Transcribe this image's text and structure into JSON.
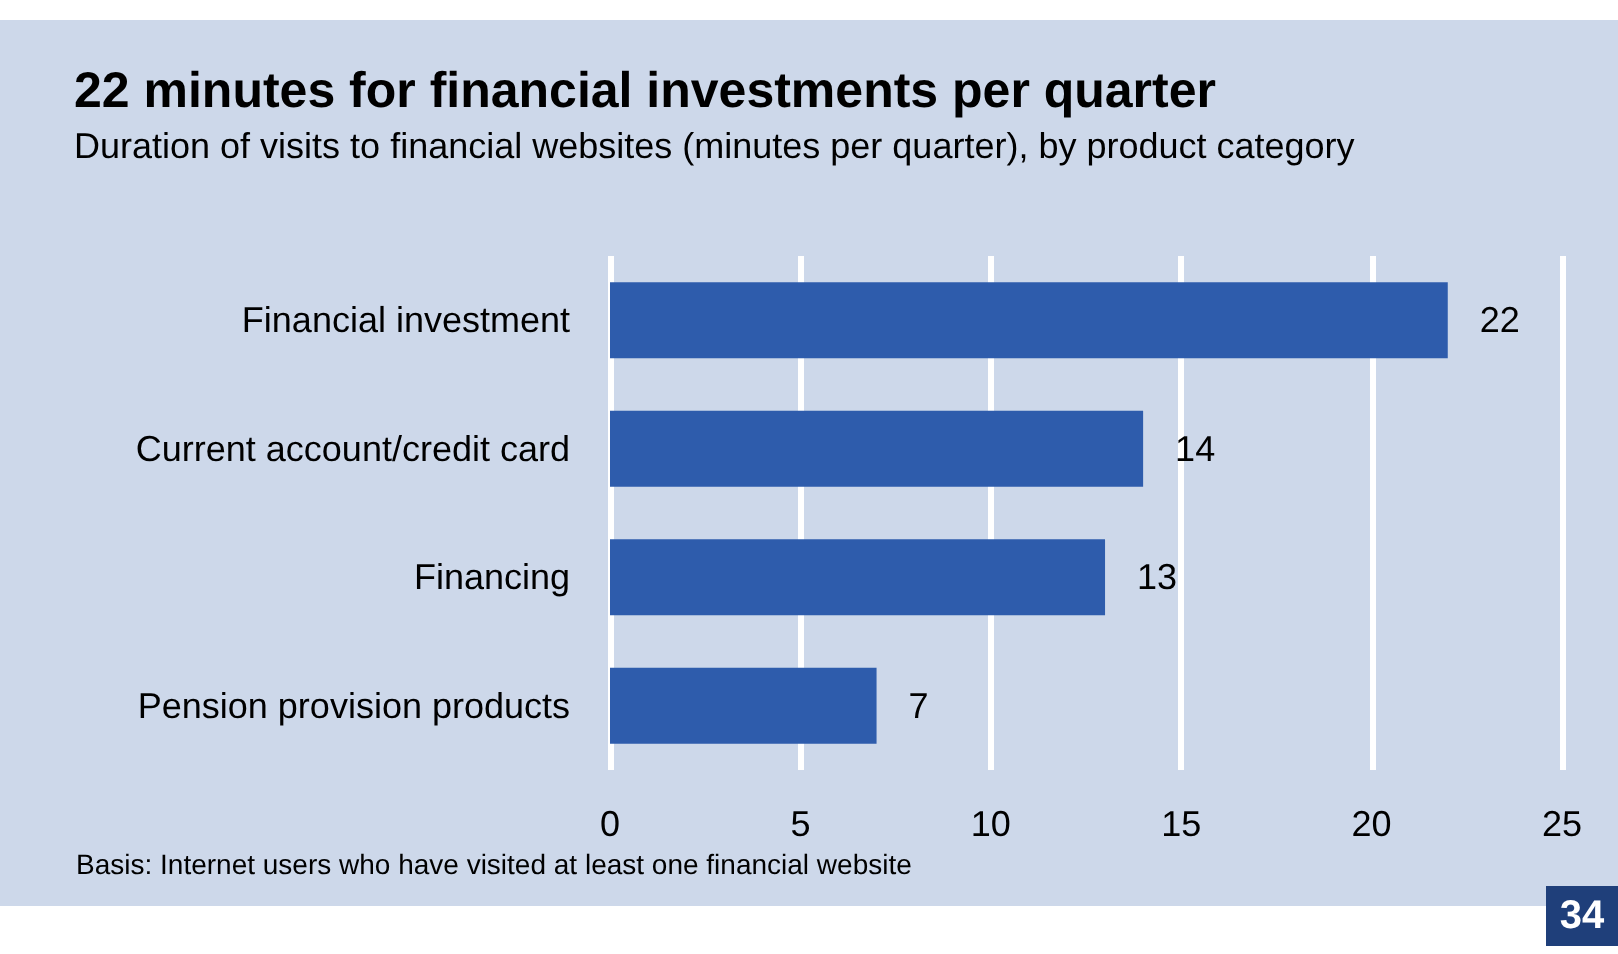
{
  "chart_data": {
    "type": "bar",
    "orientation": "horizontal",
    "title": "22 minutes for financial investments per quarter",
    "subtitle": "Duration of visits to financial websites (minutes per quarter), by product category",
    "categories": [
      "Financial investment",
      "Current account/credit card",
      "Financing",
      "Pension provision products"
    ],
    "values": [
      22,
      14,
      13,
      7
    ],
    "color": "#2e5cac",
    "data_labels": true,
    "xlim": [
      0,
      25
    ],
    "xticks": [
      0,
      5,
      10,
      15,
      20,
      25
    ],
    "grid": "x",
    "annotations": [
      "Basis: Internet users who have visited at least one financial website",
      "34"
    ]
  }
}
